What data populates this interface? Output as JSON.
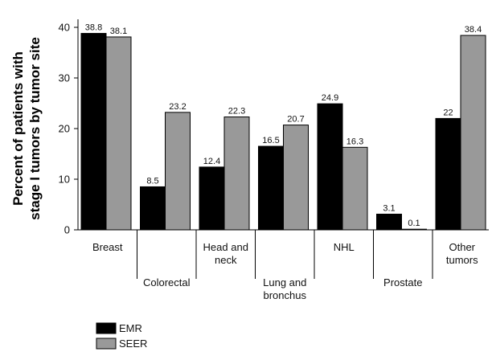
{
  "chart_data": {
    "type": "bar",
    "ylabel_lines": [
      "Percent of patients with",
      "stage I tumors by tumor site"
    ],
    "ylim": [
      0,
      40
    ],
    "yticks": [
      0,
      10,
      20,
      30,
      40
    ],
    "categories": [
      [
        "Breast"
      ],
      [
        "Colorectal"
      ],
      [
        "Head and",
        "neck"
      ],
      [
        "Lung and",
        "bronchus"
      ],
      [
        "NHL"
      ],
      [
        "Prostate"
      ],
      [
        "Other",
        "tumors"
      ]
    ],
    "label_placement": [
      "top",
      "bottom",
      "top",
      "bottom",
      "top",
      "bottom",
      "top"
    ],
    "series": [
      {
        "name": "EMR",
        "color": "#000000",
        "values": [
          38.8,
          8.5,
          12.4,
          16.5,
          24.9,
          3.1,
          22
        ],
        "labels": [
          "38.8",
          "8.5",
          "12.4",
          "16.5",
          "24.9",
          "3.1",
          "22"
        ]
      },
      {
        "name": "SEER",
        "color": "#999999",
        "values": [
          38.1,
          23.2,
          22.3,
          20.7,
          16.3,
          0.1,
          38.4
        ],
        "labels": [
          "38.1",
          "23.2",
          "22.3",
          "20.7",
          "16.3",
          "0.1",
          "38.4"
        ]
      }
    ],
    "legend_position": "bottom-left"
  }
}
